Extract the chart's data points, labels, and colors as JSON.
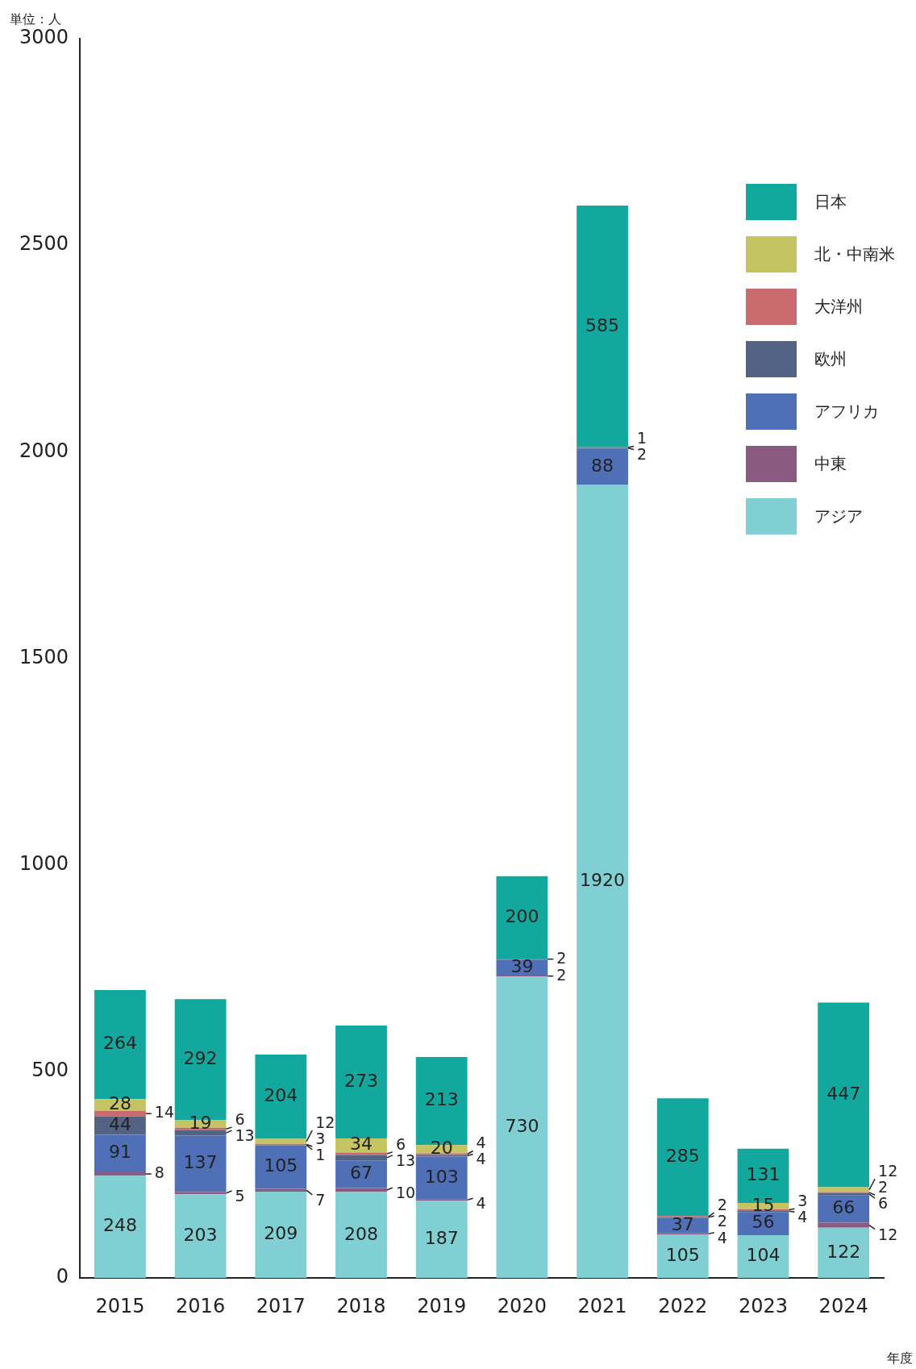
{
  "chart_data": {
    "type": "bar",
    "stacked": true,
    "ylabel": "単位：人",
    "xlabel": "年度",
    "categories": [
      "2015",
      "2016",
      "2017",
      "2018",
      "2019",
      "2020",
      "2021",
      "2022",
      "2023",
      "2024"
    ],
    "ylim": [
      0,
      3000
    ],
    "yticks": [
      0,
      500,
      1000,
      1500,
      2000,
      2500,
      3000
    ],
    "grid": false,
    "legend": "top right",
    "data_labels": true,
    "series": [
      {
        "name": "アジア",
        "color": "#80cfd3",
        "values": [
          248,
          203,
          209,
          208,
          187,
          730,
          1920,
          105,
          104,
          122
        ]
      },
      {
        "name": "中東",
        "color": "#8a5a80",
        "values": [
          8,
          5,
          7,
          10,
          4,
          2,
          null,
          4,
          null,
          12
        ]
      },
      {
        "name": "アフリカ",
        "color": "#4f70b6",
        "values": [
          91,
          137,
          105,
          67,
          103,
          39,
          88,
          37,
          56,
          66
        ]
      },
      {
        "name": "欧州",
        "color": "#526384",
        "values": [
          44,
          13,
          1,
          13,
          4,
          null,
          2,
          2,
          4,
          6
        ]
      },
      {
        "name": "大洋州",
        "color": "#c96a6e",
        "values": [
          14,
          6,
          3,
          6,
          4,
          2,
          1,
          2,
          3,
          2
        ]
      },
      {
        "name": "北・中南米",
        "color": "#c5c463",
        "values": [
          28,
          19,
          12,
          34,
          20,
          null,
          null,
          null,
          15,
          12
        ]
      },
      {
        "name": "日本",
        "color": "#12a89d",
        "values": [
          264,
          292,
          204,
          273,
          213,
          200,
          585,
          285,
          131,
          447
        ]
      }
    ]
  }
}
